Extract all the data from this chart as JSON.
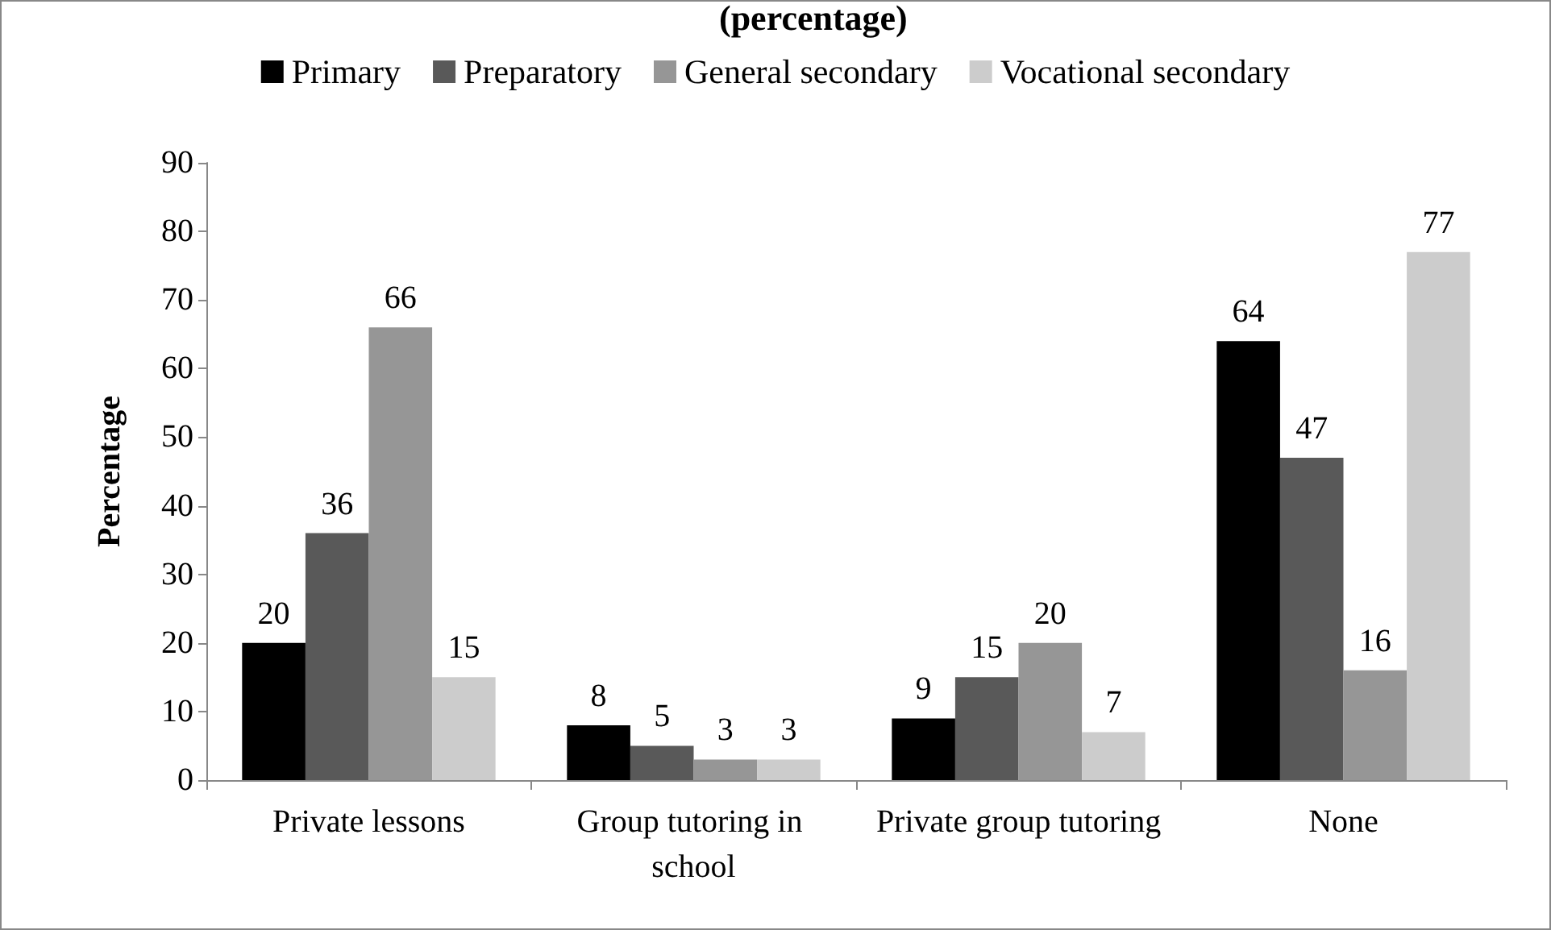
{
  "chart_data": {
    "type": "bar",
    "title": "(percentage)",
    "ylabel": "Percentage",
    "categories": [
      "Private lessons",
      "Group tutoring in school",
      "Private group tutoring",
      "None"
    ],
    "series": [
      {
        "name": "Primary",
        "color": "#000000",
        "values": [
          20,
          8,
          9,
          64
        ]
      },
      {
        "name": "Preparatory",
        "color": "#595959",
        "values": [
          36,
          5,
          15,
          47
        ]
      },
      {
        "name": "General secondary",
        "color": "#969696",
        "values": [
          66,
          3,
          20,
          16
        ]
      },
      {
        "name": "Vocational secondary",
        "color": "#cccccc",
        "values": [
          15,
          3,
          7,
          77
        ]
      }
    ],
    "ylim": [
      0,
      90
    ],
    "yticks": [
      0,
      10,
      20,
      30,
      40,
      50,
      60,
      70,
      80,
      90
    ],
    "grid": false,
    "legend": "top",
    "data_labels": true
  }
}
